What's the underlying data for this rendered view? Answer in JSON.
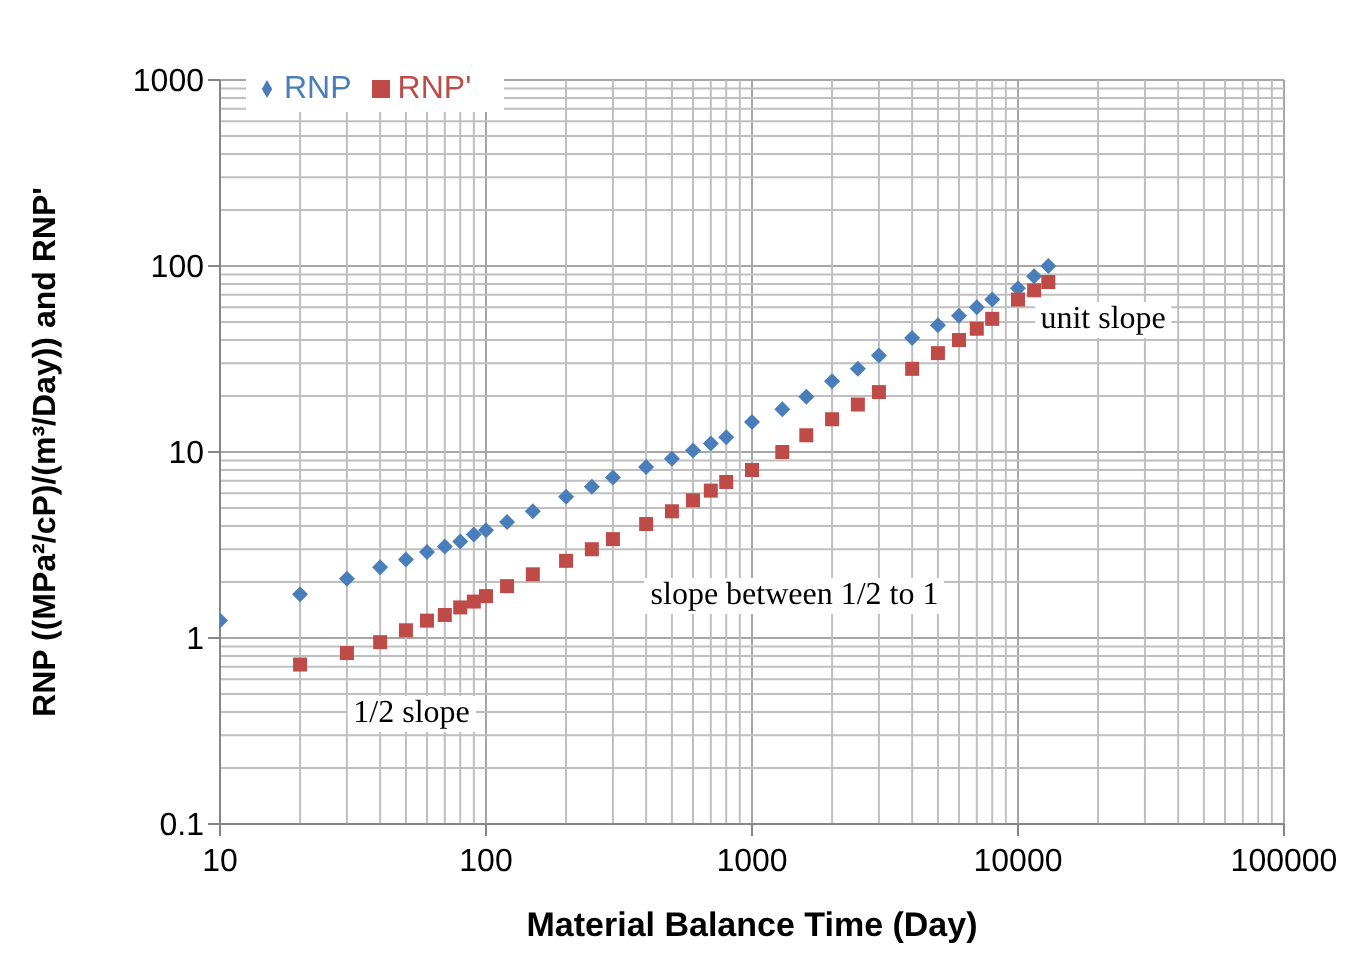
{
  "chart_data": {
    "type": "scatter",
    "xlabel": "Material Balance Time (Day)",
    "ylabel": "RNP ((MPa²/cP)/(m³/Day)) and RNP'",
    "log": "xy",
    "grid": true,
    "legend": "top left",
    "xlim": [
      10,
      100000
    ],
    "xticks": [
      10,
      100,
      1000,
      10000,
      100000
    ],
    "ylim": [
      0.1,
      1000
    ],
    "yticks": [
      0.1,
      1,
      10,
      100,
      1000
    ],
    "series": [
      {
        "name": "RNP",
        "color": "#4a7ebb",
        "marker": "diamond",
        "x": [
          10,
          20,
          30,
          40,
          50,
          60,
          70,
          80,
          90,
          100,
          120,
          150,
          200,
          250,
          300,
          400,
          500,
          600,
          700,
          800,
          1000,
          1300,
          1600,
          2000,
          2500,
          3000,
          4000,
          5000,
          6000,
          7000,
          8000,
          10000,
          11500,
          13000
        ],
        "values": [
          1.24,
          1.72,
          2.08,
          2.4,
          2.64,
          2.9,
          3.1,
          3.3,
          3.6,
          3.8,
          4.2,
          4.8,
          5.75,
          6.5,
          7.3,
          8.3,
          9.2,
          10.2,
          11.1,
          12,
          14.5,
          17,
          19.8,
          24,
          28,
          33,
          41,
          48,
          54,
          60,
          66,
          76,
          88,
          100
        ]
      },
      {
        "name": "RNP'",
        "color": "#be4b48",
        "marker": "square",
        "x": [
          20,
          30,
          40,
          50,
          60,
          70,
          80,
          90,
          100,
          120,
          150,
          200,
          250,
          300,
          400,
          500,
          600,
          700,
          800,
          1000,
          1300,
          1600,
          2000,
          2500,
          3000,
          4000,
          5000,
          6000,
          7000,
          8000,
          10000,
          11500,
          13000
        ],
        "values": [
          0.72,
          0.83,
          0.95,
          1.1,
          1.24,
          1.33,
          1.46,
          1.57,
          1.68,
          1.9,
          2.2,
          2.6,
          3,
          3.4,
          4.1,
          4.8,
          5.5,
          6.2,
          6.9,
          8,
          10,
          12.3,
          15,
          18,
          21,
          28,
          34,
          40,
          46,
          52,
          66,
          74,
          82
        ]
      }
    ],
    "annotations": [
      "unit slope",
      "slope between 1/2 to 1",
      "1/2 slope"
    ]
  }
}
